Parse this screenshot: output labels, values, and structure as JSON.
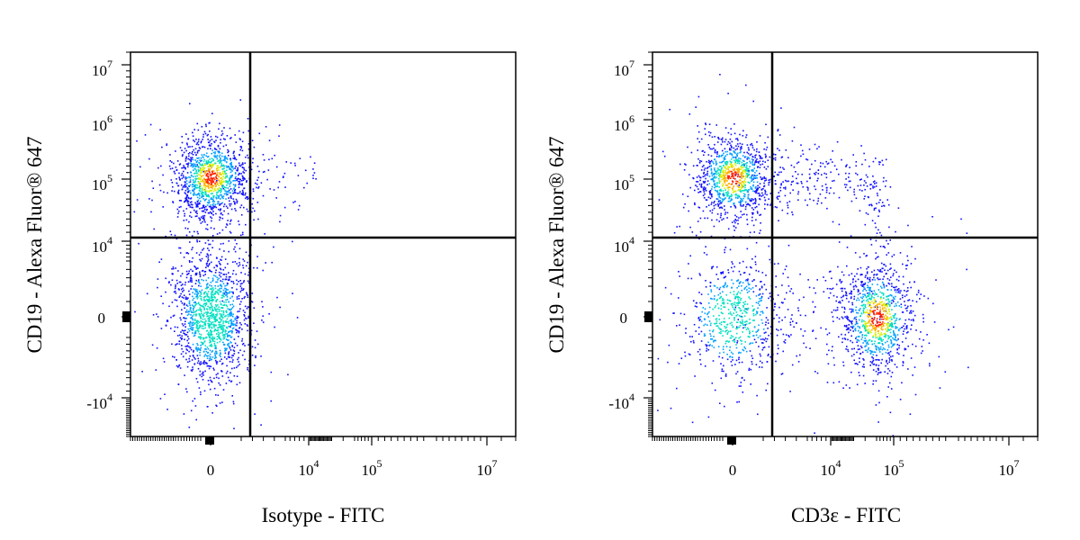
{
  "chart_data": [
    {
      "type": "scatter",
      "style": "flow-cytometry density dot plot with quadrant gates",
      "xlabel": "Isotype - FITC",
      "ylabel": "CD19 - Alexa Fluor® 647",
      "x_scale": "biexponential",
      "y_scale": "biexponential",
      "x_ticks": [
        {
          "base": "0",
          "exp": ""
        },
        {
          "base": "10",
          "exp": "4"
        },
        {
          "base": "10",
          "exp": "5"
        },
        {
          "base": "10",
          "exp": "7"
        }
      ],
      "y_ticks": [
        {
          "base": "10",
          "exp": "7"
        },
        {
          "base": "10",
          "exp": "6"
        },
        {
          "base": "10",
          "exp": "5"
        },
        {
          "base": "10",
          "exp": "4"
        },
        {
          "base": "0",
          "exp": ""
        },
        {
          "base": "-10",
          "exp": "4"
        }
      ],
      "gate_x": 1800,
      "gate_y": 12000,
      "populations": [
        {
          "name": "CD19+ B cells",
          "x_center": 0,
          "y_center": 130000,
          "relative_density": "high",
          "dots": 1100
        },
        {
          "name": "CD19- cells",
          "x_center": 0,
          "y_center": 0,
          "relative_density": "medium",
          "dots": 1400
        }
      ],
      "density_colormap": [
        "#1010ff",
        "#00a0ff",
        "#00e0c0",
        "#d8f000",
        "#ffb000",
        "#ff2000"
      ],
      "grid": false
    },
    {
      "type": "scatter",
      "style": "flow-cytometry density dot plot with quadrant gates",
      "xlabel": "CD3ε - FITC",
      "ylabel": "CD19 - Alexa Fluor® 647",
      "x_scale": "biexponential",
      "y_scale": "biexponential",
      "x_ticks": [
        {
          "base": "0",
          "exp": ""
        },
        {
          "base": "10",
          "exp": "4"
        },
        {
          "base": "10",
          "exp": "5"
        },
        {
          "base": "10",
          "exp": "7"
        }
      ],
      "y_ticks": [
        {
          "base": "10",
          "exp": "7"
        },
        {
          "base": "10",
          "exp": "6"
        },
        {
          "base": "10",
          "exp": "5"
        },
        {
          "base": "10",
          "exp": "4"
        },
        {
          "base": "0",
          "exp": ""
        },
        {
          "base": "-10",
          "exp": "4"
        }
      ],
      "gate_x": 1800,
      "gate_y": 12000,
      "populations": [
        {
          "name": "CD19+ B cells",
          "x_center": 0,
          "y_center": 130000,
          "relative_density": "high",
          "dots": 1000
        },
        {
          "name": "CD3+ T cells",
          "x_center": 50000,
          "y_center": 0,
          "relative_density": "high",
          "dots": 1000
        },
        {
          "name": "double-negative cells",
          "x_center": 0,
          "y_center": 0,
          "relative_density": "medium",
          "dots": 650
        }
      ],
      "density_colormap": [
        "#1010ff",
        "#00a0ff",
        "#00e0c0",
        "#d8f000",
        "#ffb000",
        "#ff2000"
      ],
      "grid": false
    }
  ]
}
